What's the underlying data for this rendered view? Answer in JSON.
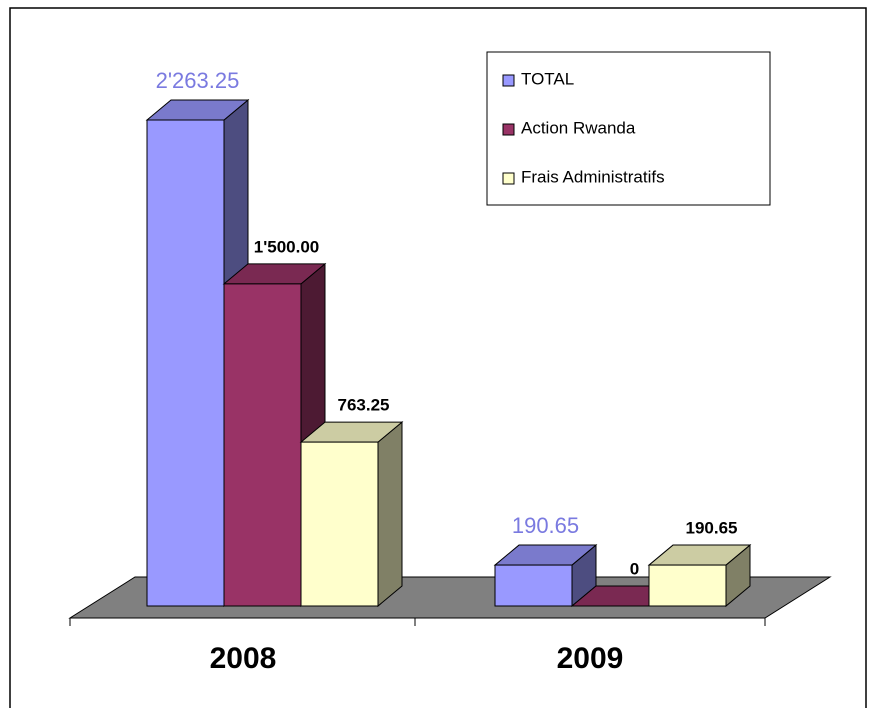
{
  "chart_data": {
    "type": "bar3d",
    "categories": [
      "2008",
      "2009"
    ],
    "series": [
      {
        "name": "TOTAL",
        "color": "#9999ff",
        "values": [
          2263.25,
          190.65
        ],
        "value_labels": [
          "2'263.25",
          "190.65"
        ]
      },
      {
        "name": "Action Rwanda",
        "color": "#993366",
        "values": [
          1500,
          0
        ],
        "value_labels": [
          "1'500.00",
          "0"
        ]
      },
      {
        "name": "Frais Administratifs",
        "color": "#ffffcc",
        "values": [
          763.25,
          190.65
        ],
        "value_labels": [
          "763.25",
          "190.65"
        ]
      }
    ],
    "legend": "top-right"
  }
}
